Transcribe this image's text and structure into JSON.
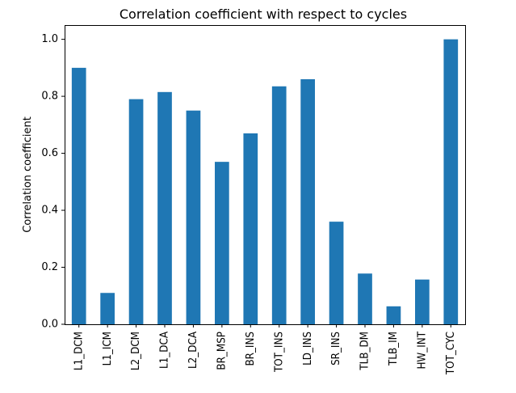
{
  "chart_data": {
    "type": "bar",
    "title": "Correlation coefficient with respect to cycles",
    "xlabel": "",
    "ylabel": "Correlation coefficient",
    "categories": [
      "L1_DCM",
      "L1_ICM",
      "L2_DCM",
      "L1_DCA",
      "L2_DCA",
      "BR_MSP",
      "BR_INS",
      "TOT_INS",
      "LD_INS",
      "SR_INS",
      "TLB_DM",
      "TLB_IM",
      "HW_INT",
      "TOT_CYC"
    ],
    "values": [
      0.9,
      0.11,
      0.79,
      0.815,
      0.75,
      0.57,
      0.67,
      0.835,
      0.86,
      0.36,
      0.178,
      0.063,
      0.157,
      1.0
    ],
    "ylim": [
      0,
      1.05
    ],
    "yticks": [
      0.0,
      0.2,
      0.4,
      0.6,
      0.8,
      1.0
    ],
    "ytick_labels": [
      "0.0",
      "0.2",
      "0.4",
      "0.6",
      "0.8",
      "1.0"
    ],
    "bar_color": "#1f77b4",
    "grid": false,
    "legend": false
  }
}
